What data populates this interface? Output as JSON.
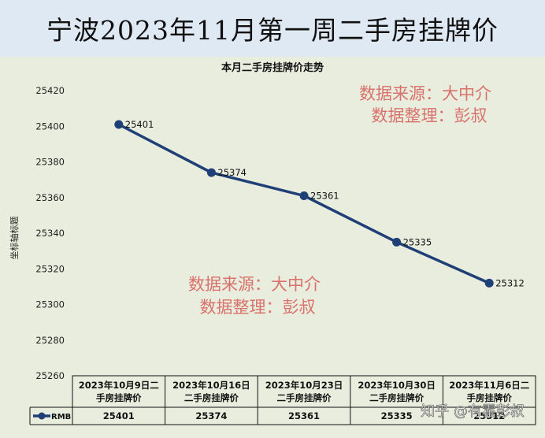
{
  "banner": {
    "title": "宁波2023年11月第一周二手房挂牌价"
  },
  "watermarks": {
    "top": [
      "数据来源：大中介",
      "数据整理：彭叔"
    ],
    "middle": [
      "数据来源：大中介",
      "数据整理：彭叔"
    ],
    "corner": "知乎 @有霍彭叔"
  },
  "colors": {
    "line": "#1f3f77",
    "watermark": "#d9726d",
    "background": "#e9eddd",
    "banner": "#dfe9f3"
  },
  "chart_data": {
    "type": "line",
    "title": "本月二手房挂牌价走势",
    "ylabel": "坐标轴标题",
    "ylim": [
      25260,
      25420
    ],
    "ytick_step": 20,
    "categories": [
      [
        "2023年10月9日二",
        "手房挂牌价"
      ],
      [
        "2023年10月16日",
        "二手房挂牌价"
      ],
      [
        "2023年10月23日",
        "二手房挂牌价"
      ],
      [
        "2023年10月30日",
        "二手房挂牌价"
      ],
      [
        "2023年11月6日二",
        "手房挂牌价"
      ]
    ],
    "series": [
      {
        "name": "RMB",
        "values": [
          25401,
          25374,
          25361,
          25335,
          25312
        ]
      }
    ],
    "table_values": [
      "25401",
      "25374",
      "25361",
      "25335",
      "25312"
    ],
    "legend": "data-table"
  }
}
